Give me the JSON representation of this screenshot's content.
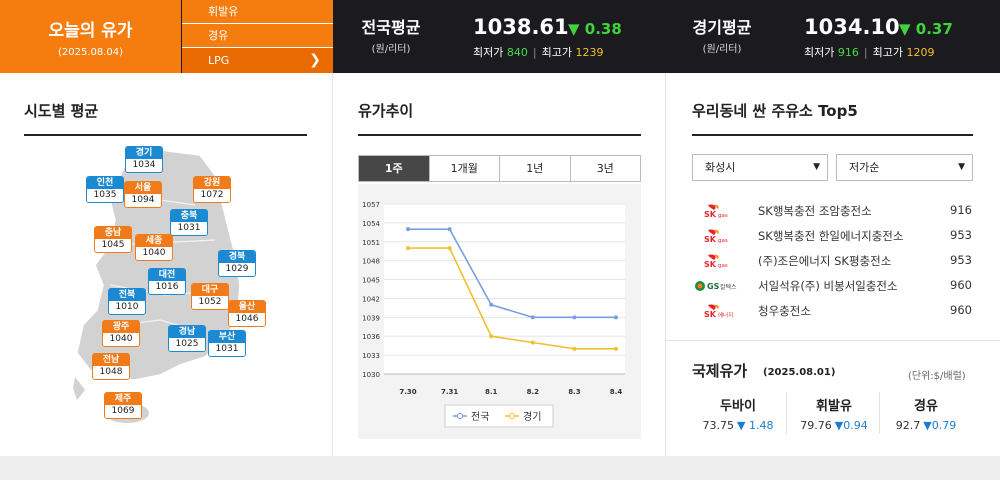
{
  "today": {
    "title": "오늘의 유가",
    "date": "(2025.08.04)"
  },
  "fuel_tabs": [
    {
      "label": "휘발유"
    },
    {
      "label": "경유"
    },
    {
      "label": "LPG",
      "selected": true
    }
  ],
  "national": {
    "label": "전국평균",
    "unit": "(원/리터)",
    "price": "1038.61",
    "change": "▼ 0.38",
    "min_label": "최저가",
    "min": "840",
    "max_label": "최고가",
    "max": "1239"
  },
  "gyeonggi": {
    "label": "경기평균",
    "unit": "(원/리터)",
    "price": "1034.10",
    "change": "▼ 0.37",
    "min_label": "최저가",
    "min": "916",
    "max_label": "최고가",
    "max": "1209"
  },
  "regional": {
    "title": "시도별 평균",
    "regions": [
      {
        "name": "경기",
        "value": "1034",
        "color": "blue"
      },
      {
        "name": "인천",
        "value": "1035",
        "color": "blue"
      },
      {
        "name": "서울",
        "value": "1094",
        "color": "orange"
      },
      {
        "name": "강원",
        "value": "1072",
        "color": "orange"
      },
      {
        "name": "충북",
        "value": "1031",
        "color": "blue"
      },
      {
        "name": "충남",
        "value": "1045",
        "color": "orange"
      },
      {
        "name": "세종",
        "value": "1040",
        "color": "orange"
      },
      {
        "name": "대전",
        "value": "1016",
        "color": "blue"
      },
      {
        "name": "경북",
        "value": "1029",
        "color": "blue"
      },
      {
        "name": "전북",
        "value": "1010",
        "color": "blue"
      },
      {
        "name": "대구",
        "value": "1052",
        "color": "orange"
      },
      {
        "name": "울산",
        "value": "1046",
        "color": "orange"
      },
      {
        "name": "광주",
        "value": "1040",
        "color": "orange"
      },
      {
        "name": "경남",
        "value": "1025",
        "color": "blue"
      },
      {
        "name": "부산",
        "value": "1031",
        "color": "blue"
      },
      {
        "name": "전남",
        "value": "1048",
        "color": "orange"
      },
      {
        "name": "제주",
        "value": "1069",
        "color": "orange"
      }
    ]
  },
  "trend": {
    "title": "유가추이",
    "periods": [
      {
        "label": "1주",
        "selected": true
      },
      {
        "label": "1개월"
      },
      {
        "label": "1년"
      },
      {
        "label": "3년"
      }
    ]
  },
  "chart_data": {
    "type": "line",
    "categories": [
      "7.30",
      "7.31",
      "8.1",
      "8.2",
      "8.3",
      "8.4"
    ],
    "series": [
      {
        "name": "전국",
        "values": [
          1053,
          1053,
          1041,
          1039,
          1039,
          1039
        ],
        "color": "#7c9ee0"
      },
      {
        "name": "경기",
        "values": [
          1050,
          1050,
          1036,
          1035,
          1034,
          1034
        ],
        "color": "#f0c030"
      }
    ],
    "yticks": [
      "1057",
      "1054",
      "1051",
      "1048",
      "1045",
      "1042",
      "1039",
      "1036",
      "1033",
      "1030"
    ],
    "ylim": [
      1030,
      1057
    ],
    "legend": "bottom-center"
  },
  "top5": {
    "title": "우리동네 싼 주유소 Top5",
    "city_select": "화성시",
    "sort_select": "저가순",
    "stations": [
      {
        "brand": "sk-gas",
        "logo_text": "SK",
        "logo_sub": "gas",
        "name": "SK행복충전 조암충전소",
        "price": "916"
      },
      {
        "brand": "sk-gas",
        "logo_text": "SK",
        "logo_sub": "gas",
        "name": "SK행복충전 한일에너지충전소",
        "price": "953"
      },
      {
        "brand": "sk-gas",
        "logo_text": "SK",
        "logo_sub": "gas",
        "name": "(주)조은에너지 SK평충전소",
        "price": "953"
      },
      {
        "brand": "gs-caltex",
        "logo_text": "GS",
        "logo_sub": "칼텍스",
        "name": "서일석유(주) 비봉서일충전소",
        "price": "960"
      },
      {
        "brand": "sk-energy",
        "logo_text": "SK",
        "logo_sub": "에너지",
        "name": "청우충전소",
        "price": "960"
      }
    ]
  },
  "international": {
    "title": "국제유가",
    "date": "(2025.08.01)",
    "unit": "(단위:$/배럴)",
    "items": [
      {
        "name": "두바이",
        "value": "73.75",
        "change": "▼ 1.48"
      },
      {
        "name": "휘발유",
        "value": "79.76",
        "change": "▼0.94"
      },
      {
        "name": "경유",
        "value": "92.7",
        "change": "▼0.79"
      }
    ]
  },
  "colors": {
    "accent": "#f57d10",
    "header_bg": "#1b1b1f",
    "region_blue": "#1b8ad3",
    "region_orange": "#f07b18",
    "down": "#1a7cd4"
  }
}
